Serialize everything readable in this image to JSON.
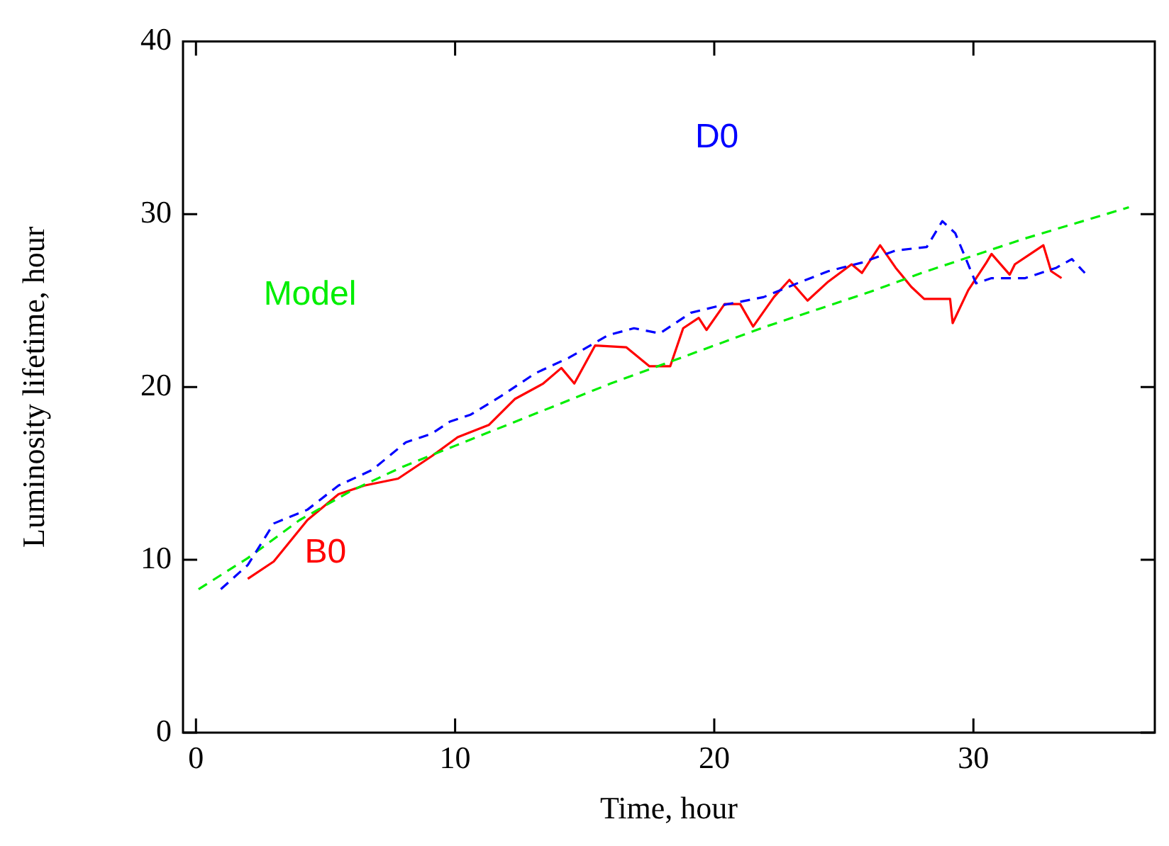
{
  "chart_data": {
    "type": "line",
    "xlabel": "Time, hour",
    "ylabel": "Luminosity lifetime, hour",
    "xlim": [
      -0.5,
      37
    ],
    "ylim": [
      0,
      40
    ],
    "xticks": [
      0,
      10,
      20,
      30
    ],
    "yticks": [
      0,
      10,
      20,
      30,
      40
    ],
    "grid": false,
    "legend": false,
    "marker": "none",
    "series": [
      {
        "name": "D0",
        "color": "#0000ff",
        "line_style": "dashed",
        "x": [
          0.96,
          2.0,
          3.0,
          4.3,
          5.5,
          6.8,
          8.1,
          9.1,
          9.8,
          10.6,
          11.8,
          13.1,
          14.4,
          15.9,
          16.9,
          17.9,
          19.1,
          20.2,
          21.9,
          23.2,
          24.4,
          25.7,
          27.0,
          28.2,
          28.8,
          29.3,
          30.1,
          30.7,
          32.0,
          33.2,
          33.8,
          34.3
        ],
        "values": [
          8.3,
          9.7,
          12.1,
          12.9,
          14.3,
          15.2,
          16.8,
          17.3,
          18.0,
          18.4,
          19.5,
          20.8,
          21.7,
          23.0,
          23.4,
          23.1,
          24.3,
          24.7,
          25.2,
          26.0,
          26.7,
          27.2,
          27.9,
          28.1,
          29.6,
          28.9,
          26.0,
          26.3,
          26.3,
          26.9,
          27.4,
          26.6
        ]
      },
      {
        "name": "Model",
        "color": "#00ee00",
        "line_style": "dashed",
        "x": [
          0.1,
          2,
          4,
          6,
          8,
          10,
          12,
          14,
          16,
          18,
          20,
          22,
          24,
          26,
          28,
          30,
          32,
          34,
          36
        ],
        "values": [
          8.3,
          10.1,
          12.3,
          14.0,
          15.4,
          16.6,
          17.8,
          19.0,
          20.2,
          21.3,
          22.4,
          23.5,
          24.5,
          25.5,
          26.6,
          27.6,
          28.6,
          29.5,
          30.4
        ]
      },
      {
        "name": "B0",
        "color": "#ff0000",
        "line_style": "solid",
        "x": [
          2.0,
          3.0,
          4.3,
          5.5,
          6.5,
          7.8,
          9.1,
          10.1,
          11.3,
          12.3,
          13.4,
          14.1,
          14.6,
          15.4,
          16.6,
          17.5,
          18.3,
          18.8,
          19.4,
          19.7,
          20.4,
          21.0,
          21.5,
          22.3,
          22.9,
          23.6,
          24.4,
          25.3,
          25.7,
          26.4,
          27.0,
          27.6,
          28.1,
          29.1,
          29.2,
          29.8,
          30.5,
          30.7,
          31.4,
          31.6,
          32.2,
          32.7,
          33.0,
          33.4
        ],
        "values": [
          8.9,
          9.9,
          12.3,
          13.8,
          14.3,
          14.7,
          16.0,
          17.1,
          17.8,
          19.3,
          20.2,
          21.1,
          20.2,
          22.4,
          22.3,
          21.2,
          21.2,
          23.4,
          24.0,
          23.3,
          24.8,
          24.8,
          23.5,
          25.2,
          26.2,
          25.0,
          26.1,
          27.1,
          26.6,
          28.2,
          26.9,
          25.8,
          25.1,
          25.1,
          23.7,
          25.6,
          27.2,
          27.7,
          26.5,
          27.1,
          27.7,
          28.2,
          26.7,
          26.3
        ]
      }
    ]
  }
}
